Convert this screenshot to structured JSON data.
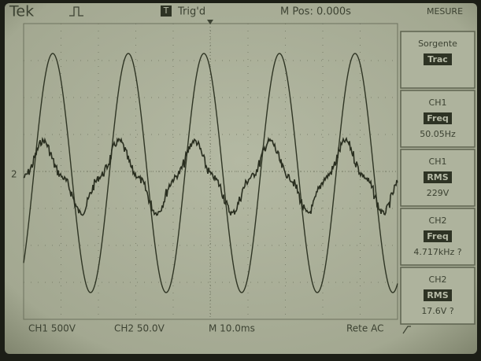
{
  "header": {
    "brand": "Tek",
    "trigger_badge": "T",
    "trigger_state": "Trig'd",
    "horizontal_position": "M Pos: 0.000s",
    "menu": "MESURE"
  },
  "measure_panel": [
    {
      "top": "Sorgente",
      "badge": "Trac"
    },
    {
      "top": "CH1",
      "badge": "Freq",
      "bottom": "50.05Hz"
    },
    {
      "top": "CH1",
      "badge": "RMS",
      "bottom": "229V"
    },
    {
      "top": "CH2",
      "badge": "Freq",
      "bottom": "4.717kHz ?"
    },
    {
      "top": "CH2",
      "badge": "RMS",
      "bottom": "17.6V ?"
    }
  ],
  "markers": {
    "ch2": "2"
  },
  "footer": {
    "ch1_scale": "CH1  500V",
    "ch2_scale": "CH2  50.0V",
    "time_base": "M 10.0ms",
    "trigger": "Rete AC"
  }
}
